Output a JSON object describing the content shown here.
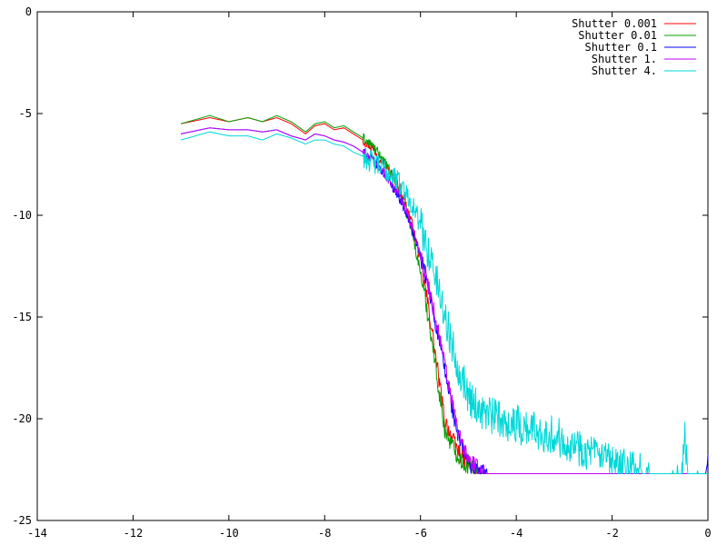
{
  "chart_data": {
    "type": "line",
    "title": "",
    "xlabel": "",
    "ylabel": "",
    "xlim": [
      -14,
      0
    ],
    "ylim": [
      -25,
      0
    ],
    "xticks": [
      -14,
      -12,
      -10,
      -8,
      -6,
      -4,
      -2,
      0
    ],
    "yticks": [
      0,
      -5,
      -10,
      -15,
      -20,
      -25
    ],
    "grid": false,
    "legend_position": "top-right",
    "floor_value": -22.7,
    "series": [
      {
        "name": "Shutter 0.001",
        "color": "#ff0000",
        "noise": 0.32,
        "points": [
          [
            -11,
            -5.5
          ],
          [
            -10.4,
            -5.2
          ],
          [
            -10,
            -5.4
          ],
          [
            -9.6,
            -5.2
          ],
          [
            -9.3,
            -5.4
          ],
          [
            -9.0,
            -5.2
          ],
          [
            -8.7,
            -5.5
          ],
          [
            -8.4,
            -6.0
          ],
          [
            -8.2,
            -5.6
          ],
          [
            -8.0,
            -5.5
          ],
          [
            -7.8,
            -5.8
          ],
          [
            -7.6,
            -5.7
          ],
          [
            -7.4,
            -6.0
          ],
          [
            -7.2,
            -6.3
          ],
          [
            -7.0,
            -6.7
          ],
          [
            -6.8,
            -7.3
          ],
          [
            -6.6,
            -8.0
          ],
          [
            -6.4,
            -8.8
          ],
          [
            -6.2,
            -10.2
          ],
          [
            -6.0,
            -12.2
          ],
          [
            -5.8,
            -15.0
          ],
          [
            -5.65,
            -17.5
          ],
          [
            -5.5,
            -20.0
          ],
          [
            -5.3,
            -21.2
          ],
          [
            -5.1,
            -22.0
          ],
          [
            -4.9,
            -22.4
          ],
          [
            -4.8,
            -22.7
          ],
          [
            -4.5,
            -22.7
          ]
        ]
      },
      {
        "name": "Shutter 0.01",
        "color": "#00a000",
        "noise": 0.32,
        "points": [
          [
            -11,
            -5.5
          ],
          [
            -10.4,
            -5.1
          ],
          [
            -10,
            -5.4
          ],
          [
            -9.6,
            -5.2
          ],
          [
            -9.3,
            -5.4
          ],
          [
            -9.0,
            -5.1
          ],
          [
            -8.7,
            -5.4
          ],
          [
            -8.4,
            -5.9
          ],
          [
            -8.2,
            -5.5
          ],
          [
            -8.0,
            -5.4
          ],
          [
            -7.8,
            -5.7
          ],
          [
            -7.6,
            -5.6
          ],
          [
            -7.4,
            -5.9
          ],
          [
            -7.2,
            -6.2
          ],
          [
            -7.0,
            -6.6
          ],
          [
            -6.8,
            -7.2
          ],
          [
            -6.6,
            -8.0
          ],
          [
            -6.4,
            -9.0
          ],
          [
            -6.2,
            -10.6
          ],
          [
            -6.0,
            -12.8
          ],
          [
            -5.8,
            -15.5
          ],
          [
            -5.65,
            -18.0
          ],
          [
            -5.5,
            -20.5
          ],
          [
            -5.3,
            -21.5
          ],
          [
            -5.1,
            -22.2
          ],
          [
            -4.9,
            -22.5
          ],
          [
            -4.8,
            -22.7
          ],
          [
            -4.5,
            -22.7
          ]
        ]
      },
      {
        "name": "Shutter 0.1",
        "color": "#0000ff",
        "noise": 0.32,
        "points": [
          [
            -11,
            -6.0
          ],
          [
            -10.4,
            -5.7
          ],
          [
            -10,
            -5.8
          ],
          [
            -9.6,
            -5.8
          ],
          [
            -9.3,
            -5.9
          ],
          [
            -9.0,
            -5.8
          ],
          [
            -8.7,
            -6.1
          ],
          [
            -8.4,
            -6.3
          ],
          [
            -8.2,
            -6.0
          ],
          [
            -8.0,
            -6.1
          ],
          [
            -7.8,
            -6.3
          ],
          [
            -7.6,
            -6.4
          ],
          [
            -7.4,
            -6.6
          ],
          [
            -7.2,
            -6.9
          ],
          [
            -7.0,
            -7.3
          ],
          [
            -6.8,
            -7.8
          ],
          [
            -6.6,
            -8.5
          ],
          [
            -6.4,
            -9.3
          ],
          [
            -6.2,
            -10.5
          ],
          [
            -6.0,
            -12.0
          ],
          [
            -5.8,
            -14.0
          ],
          [
            -5.6,
            -16.3
          ],
          [
            -5.4,
            -18.8
          ],
          [
            -5.2,
            -21.0
          ],
          [
            -5.0,
            -22.2
          ],
          [
            -4.8,
            -22.6
          ],
          [
            -4.6,
            -22.7
          ],
          [
            -0.05,
            -22.7
          ],
          [
            0,
            -22.1
          ]
        ]
      },
      {
        "name": "Shutter 1.",
        "color": "#c000ff",
        "noise": 0.32,
        "points": [
          [
            -11,
            -6.0
          ],
          [
            -10.4,
            -5.7
          ],
          [
            -10,
            -5.8
          ],
          [
            -9.6,
            -5.8
          ],
          [
            -9.3,
            -5.9
          ],
          [
            -9.0,
            -5.8
          ],
          [
            -8.7,
            -6.1
          ],
          [
            -8.4,
            -6.3
          ],
          [
            -8.2,
            -6.0
          ],
          [
            -8.0,
            -6.1
          ],
          [
            -7.8,
            -6.3
          ],
          [
            -7.6,
            -6.4
          ],
          [
            -7.4,
            -6.6
          ],
          [
            -7.2,
            -6.9
          ],
          [
            -7.0,
            -7.3
          ],
          [
            -6.8,
            -7.8
          ],
          [
            -6.6,
            -8.4
          ],
          [
            -6.4,
            -9.2
          ],
          [
            -6.2,
            -10.4
          ],
          [
            -6.0,
            -11.9
          ],
          [
            -5.8,
            -13.8
          ],
          [
            -5.6,
            -16.0
          ],
          [
            -5.4,
            -18.5
          ],
          [
            -5.2,
            -20.8
          ],
          [
            -5.0,
            -22.0
          ],
          [
            -4.8,
            -22.5
          ],
          [
            -4.6,
            -22.7
          ],
          [
            0,
            -22.7
          ]
        ]
      },
      {
        "name": "Shutter 4.",
        "color": "#00d8d8",
        "noise": 0.7,
        "points": [
          [
            -11,
            -6.3
          ],
          [
            -10.4,
            -5.9
          ],
          [
            -10,
            -6.1
          ],
          [
            -9.6,
            -6.1
          ],
          [
            -9.3,
            -6.3
          ],
          [
            -9.0,
            -6.0
          ],
          [
            -8.7,
            -6.2
          ],
          [
            -8.4,
            -6.5
          ],
          [
            -8.2,
            -6.3
          ],
          [
            -8.0,
            -6.3
          ],
          [
            -7.8,
            -6.5
          ],
          [
            -7.6,
            -6.6
          ],
          [
            -7.4,
            -6.9
          ],
          [
            -7.2,
            -7.1
          ],
          [
            -7.0,
            -7.4
          ],
          [
            -6.8,
            -7.7
          ],
          [
            -6.6,
            -8.0
          ],
          [
            -6.4,
            -8.5
          ],
          [
            -6.2,
            -9.3
          ],
          [
            -6.0,
            -10.5
          ],
          [
            -5.8,
            -12.0
          ],
          [
            -5.6,
            -13.8
          ],
          [
            -5.4,
            -15.8
          ],
          [
            -5.2,
            -17.5
          ],
          [
            -5.0,
            -18.8
          ],
          [
            -4.8,
            -19.5
          ],
          [
            -4.5,
            -19.9
          ],
          [
            -4.0,
            -20.3
          ],
          [
            -3.5,
            -20.6
          ],
          [
            -3.0,
            -21.0
          ],
          [
            -2.5,
            -21.6
          ],
          [
            -2.0,
            -22.3
          ],
          [
            -1.5,
            -22.6
          ],
          [
            -1.2,
            -22.7
          ],
          [
            -0.55,
            -22.7
          ],
          [
            -0.48,
            -20.8
          ],
          [
            -0.42,
            -22.7
          ],
          [
            0,
            -22.7
          ]
        ]
      }
    ]
  }
}
